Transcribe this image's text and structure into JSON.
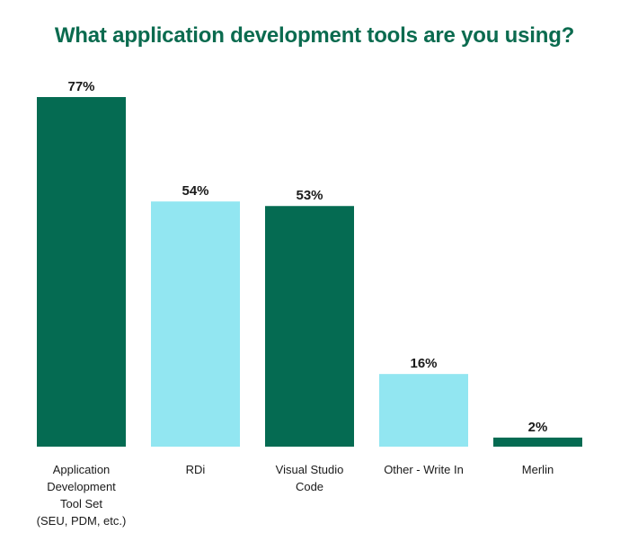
{
  "chart_data": {
    "type": "bar",
    "title": "What application development tools are you using?",
    "categories": [
      [
        "Application",
        "Development",
        "Tool Set",
        "(SEU, PDM, etc.)"
      ],
      [
        "RDi"
      ],
      [
        "Visual Studio",
        "Code"
      ],
      [
        "Other - Write In"
      ],
      [
        "Merlin"
      ]
    ],
    "values": [
      77,
      54,
      53,
      16,
      2
    ],
    "value_labels": [
      "77%",
      "54%",
      "53%",
      "16%",
      "2%"
    ],
    "bar_colors": [
      "#056b52",
      "#92e6f1",
      "#056b52",
      "#92e6f1",
      "#056b52"
    ],
    "unit": "%",
    "ylim": [
      0,
      77
    ],
    "grid": false,
    "legend": "none"
  }
}
